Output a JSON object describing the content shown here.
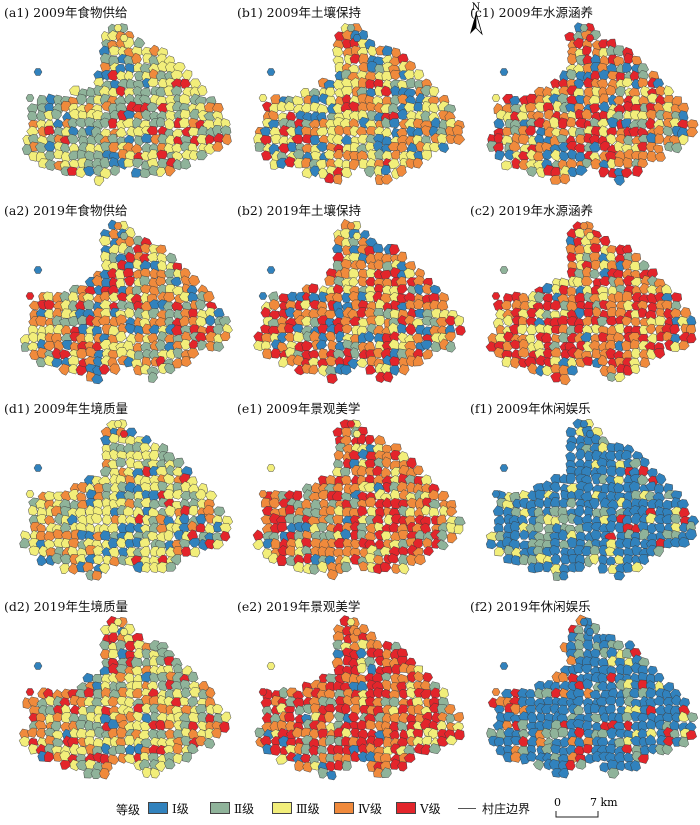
{
  "panels": [
    {
      "id": "a1",
      "title": "(a1) 2009年食物供给",
      "palette": [
        0,
        1,
        1,
        2,
        2,
        1,
        0,
        3,
        2,
        1,
        2,
        1,
        4,
        1,
        2,
        2,
        1,
        2,
        3,
        1
      ]
    },
    {
      "id": "b1",
      "title": "(b1) 2009年土壤保持",
      "palette": [
        0,
        2,
        3,
        2,
        0,
        2,
        3,
        4,
        2,
        0,
        1,
        2,
        3,
        2,
        3,
        0,
        2,
        3,
        1,
        2
      ]
    },
    {
      "id": "c1",
      "title": "(c1) 2009年水源涵养",
      "palette": [
        0,
        1,
        3,
        4,
        3,
        2,
        0,
        4,
        3,
        2,
        1,
        3,
        4,
        0,
        3,
        4,
        1,
        3,
        2,
        4
      ]
    },
    {
      "id": "a2",
      "title": "(a2) 2019年食物供给",
      "palette": [
        0,
        3,
        2,
        1,
        3,
        4,
        0,
        2,
        3,
        1,
        3,
        2,
        4,
        0,
        3,
        1,
        2,
        3,
        1,
        2
      ]
    },
    {
      "id": "b2",
      "title": "(b2) 2019年土壤保持",
      "palette": [
        0,
        3,
        2,
        4,
        3,
        0,
        2,
        4,
        3,
        1,
        3,
        2,
        4,
        0,
        3,
        2,
        4,
        3,
        1,
        2
      ]
    },
    {
      "id": "c2",
      "title": "(c2) 2019年水源涵养",
      "palette": [
        1,
        3,
        4,
        3,
        2,
        4,
        0,
        3,
        4,
        2,
        3,
        4,
        1,
        3,
        4,
        2,
        3,
        4,
        0,
        3
      ]
    },
    {
      "id": "d1",
      "title": "(d1) 2009年生境质量",
      "palette": [
        0,
        2,
        2,
        1,
        3,
        2,
        0,
        2,
        1,
        3,
        2,
        2,
        1,
        0,
        2,
        4,
        1,
        2,
        3,
        2
      ]
    },
    {
      "id": "e1",
      "title": "(e1) 2009年景观美学",
      "palette": [
        2,
        3,
        3,
        4,
        1,
        3,
        0,
        4,
        3,
        2,
        4,
        3,
        1,
        3,
        4,
        2,
        3,
        3,
        1,
        4
      ]
    },
    {
      "id": "f1",
      "title": "(f1) 2009年休闲娱乐",
      "palette": [
        0,
        0,
        1,
        0,
        0,
        0,
        1,
        0,
        0,
        2,
        0,
        0,
        1,
        0,
        0,
        0,
        4,
        0,
        1,
        0
      ]
    },
    {
      "id": "d2",
      "title": "(d2) 2019年生境质量",
      "palette": [
        0,
        2,
        3,
        1,
        2,
        4,
        0,
        2,
        3,
        1,
        2,
        3,
        1,
        2,
        4,
        2,
        1,
        3,
        2,
        2
      ]
    },
    {
      "id": "e2",
      "title": "(e2) 2019年景观美学",
      "palette": [
        2,
        4,
        3,
        4,
        1,
        4,
        0,
        4,
        3,
        4,
        2,
        4,
        3,
        1,
        4,
        3,
        4,
        2,
        4,
        3
      ]
    },
    {
      "id": "f2",
      "title": "(f2) 2019年休闲娱乐",
      "palette": [
        0,
        0,
        1,
        0,
        0,
        3,
        0,
        0,
        1,
        0,
        0,
        4,
        0,
        1,
        0,
        0,
        2,
        0,
        0,
        0
      ]
    }
  ],
  "colors": [
    "#3182bd",
    "#8fb39a",
    "#f2ee7a",
    "#f08a3c",
    "#e3252b"
  ],
  "north_label": "N",
  "legend": {
    "title": "等级",
    "items": [
      {
        "label": "Ⅰ级",
        "color": "#3182bd"
      },
      {
        "label": "Ⅱ级",
        "color": "#8fb39a"
      },
      {
        "label": "Ⅲ级",
        "color": "#f2ee7a"
      },
      {
        "label": "Ⅳ级",
        "color": "#f08a3c"
      },
      {
        "label": "Ⅴ级",
        "color": "#e3252b"
      }
    ],
    "boundary_label": "村庄边界"
  },
  "scale": {
    "zero": "0",
    "end": "7 km"
  }
}
